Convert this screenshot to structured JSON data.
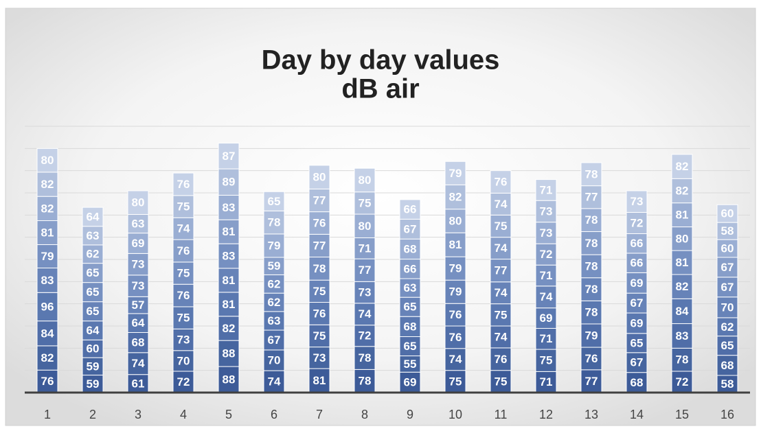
{
  "chart_data": {
    "type": "stacked_bar",
    "title": [
      "Day by day values",
      "dB air"
    ],
    "categories": [
      "1",
      "2",
      "3",
      "4",
      "5",
      "6",
      "7",
      "8",
      "9",
      "10",
      "11",
      "12",
      "13",
      "14",
      "15",
      "16"
    ],
    "ylim": [
      0,
      900
    ],
    "yticks": [
      0,
      75,
      150,
      225,
      300,
      375,
      450,
      525,
      600,
      675,
      750,
      825,
      900
    ],
    "grid": true,
    "series": [
      {
        "color": "#3d5b98",
        "values": [
          76,
          59,
          61,
          72,
          88,
          74,
          81,
          78,
          69,
          75,
          75,
          71,
          77,
          68,
          72,
          58
        ]
      },
      {
        "color": "#46659f",
        "values": [
          82,
          59,
          74,
          70,
          88,
          70,
          73,
          78,
          55,
          74,
          76,
          75,
          76,
          67,
          78,
          68
        ]
      },
      {
        "color": "#506ea8",
        "values": [
          84,
          60,
          68,
          73,
          82,
          67,
          75,
          72,
          65,
          76,
          74,
          71,
          79,
          65,
          83,
          65
        ]
      },
      {
        "color": "#5a78b0",
        "values": [
          96,
          64,
          64,
          75,
          81,
          63,
          76,
          74,
          68,
          76,
          75,
          69,
          78,
          69,
          84,
          62
        ]
      },
      {
        "color": "#6783b8",
        "values": [
          83,
          65,
          57,
          76,
          81,
          62,
          75,
          73,
          65,
          79,
          74,
          74,
          78,
          67,
          82,
          70
        ]
      },
      {
        "color": "#7690c1",
        "values": [
          79,
          65,
          73,
          75,
          83,
          62,
          78,
          77,
          63,
          79,
          77,
          71,
          78,
          69,
          81,
          67
        ]
      },
      {
        "color": "#879ec9",
        "values": [
          81,
          65,
          73,
          76,
          81,
          59,
          77,
          71,
          66,
          81,
          74,
          72,
          78,
          66,
          80,
          67
        ]
      },
      {
        "color": "#9aaed3",
        "values": [
          82,
          62,
          69,
          74,
          83,
          79,
          76,
          80,
          68,
          80,
          75,
          73,
          78,
          66,
          81,
          60
        ]
      },
      {
        "color": "#afbfdc",
        "values": [
          82,
          63,
          63,
          75,
          89,
          78,
          77,
          75,
          67,
          82,
          74,
          73,
          77,
          72,
          82,
          58
        ]
      },
      {
        "color": "#c5d1e7",
        "values": [
          80,
          64,
          80,
          76,
          87,
          65,
          80,
          80,
          66,
          79,
          76,
          71,
          78,
          73,
          82,
          60
        ]
      }
    ]
  }
}
